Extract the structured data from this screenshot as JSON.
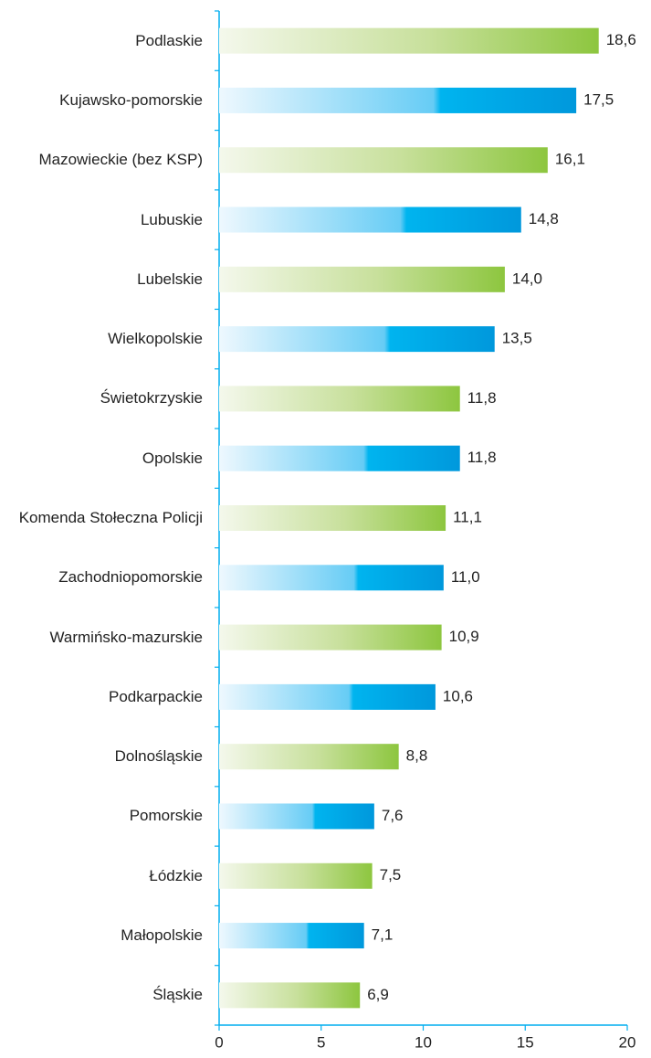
{
  "chart_data": {
    "type": "bar",
    "orientation": "horizontal",
    "categories": [
      "Podlaskie",
      "Kujawsko-pomorskie",
      "Mazowieckie (bez KSP)",
      "Lubuskie",
      "Lubelskie",
      "Wielkopolskie",
      "Świetokrzyskie",
      "Opolskie",
      "Komenda Stołeczna Policji",
      "Zachodniopomorskie",
      "Warmińsko-mazurskie",
      "Podkarpackie",
      "Dolnośląskie",
      "Pomorskie",
      "Łódzkie",
      "Małopolskie",
      "Śląskie"
    ],
    "values": [
      18.6,
      17.5,
      16.1,
      14.8,
      14.0,
      13.5,
      11.8,
      11.8,
      11.1,
      11.0,
      10.9,
      10.6,
      8.8,
      7.6,
      7.5,
      7.1,
      6.9
    ],
    "value_labels": [
      "18,6",
      "17,5",
      "16,1",
      "14,8",
      "14,0",
      "13,5",
      "11,8",
      "11,8",
      "11,1",
      "11,0",
      "10,9",
      "10,6",
      "8,8",
      "7,6",
      "7,5",
      "7,1",
      "6,9"
    ],
    "colors": [
      "#8dc63f",
      "#00aeef"
    ],
    "xlim": [
      0,
      20
    ],
    "xticks": [
      0,
      5,
      10,
      15,
      20
    ]
  }
}
